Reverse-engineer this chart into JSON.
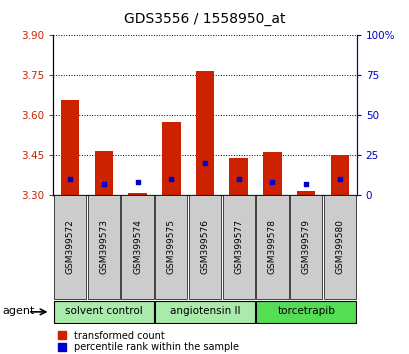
{
  "title": "GDS3556 / 1558950_at",
  "samples": [
    "GSM399572",
    "GSM399573",
    "GSM399574",
    "GSM399575",
    "GSM399576",
    "GSM399577",
    "GSM399578",
    "GSM399579",
    "GSM399580"
  ],
  "red_values": [
    3.655,
    3.465,
    3.305,
    3.575,
    3.765,
    3.44,
    3.46,
    3.315,
    3.45
  ],
  "blue_pct": [
    10,
    7,
    8,
    10,
    20,
    10,
    8,
    7,
    10
  ],
  "ylim_left": [
    3.3,
    3.9
  ],
  "ylim_right": [
    0,
    100
  ],
  "yticks_left": [
    3.3,
    3.45,
    3.6,
    3.75,
    3.9
  ],
  "yticks_right": [
    0,
    25,
    50,
    75,
    100
  ],
  "bar_bottom": 3.3,
  "agent_groups": [
    {
      "label": "solvent control",
      "start": 0,
      "end": 3,
      "color": "#aaeaaa"
    },
    {
      "label": "angiotensin II",
      "start": 3,
      "end": 6,
      "color": "#aaeaaa"
    },
    {
      "label": "torcetrapib",
      "start": 6,
      "end": 9,
      "color": "#55dd55"
    }
  ],
  "bar_color": "#cc2200",
  "blue_color": "#0000cc",
  "bar_width": 0.55,
  "grid_color": "#000000",
  "bg_color": "#ffffff",
  "tick_color_left": "#cc2200",
  "tick_color_right": "#0000cc",
  "legend_red_label": "transformed count",
  "legend_blue_label": "percentile rank within the sample",
  "agent_label": "agent",
  "sample_box_color": "#cccccc"
}
